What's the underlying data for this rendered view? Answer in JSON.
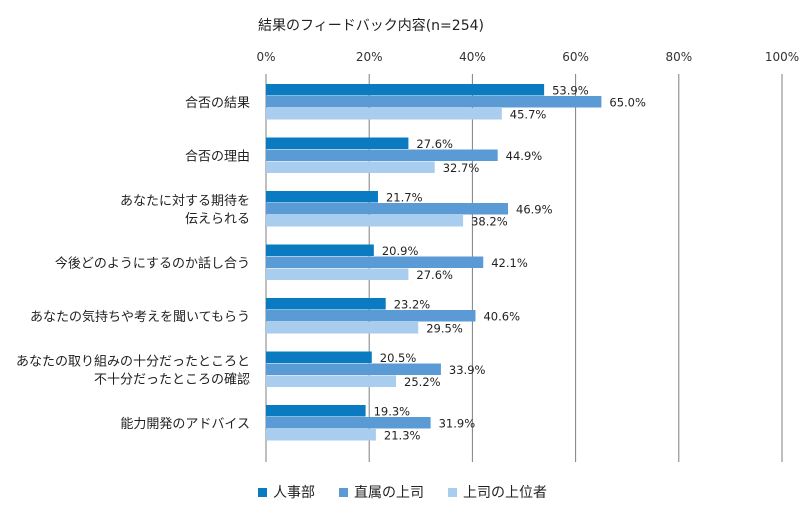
{
  "chart_data": {
    "type": "bar",
    "orientation": "horizontal",
    "title": "結果のフィードバック内容(n=254)",
    "x_axis": {
      "min": 0,
      "max": 100,
      "ticks": [
        "0%",
        "20%",
        "40%",
        "60%",
        "80%",
        "100%"
      ],
      "tick_values": [
        0,
        20,
        40,
        60,
        80,
        100
      ],
      "grid": true
    },
    "categories": [
      [
        "合否の結果"
      ],
      [
        "合否の理由"
      ],
      [
        "あなたに対する期待を",
        "伝えられる"
      ],
      [
        "今後どのようにするのか話し合う"
      ],
      [
        "あなたの気持ちや考えを聞いてもらう"
      ],
      [
        "あなたの取り組みの十分だったところと",
        "不十分だったところの確認"
      ],
      [
        "能力開発のアドバイス"
      ]
    ],
    "series": [
      {
        "name": "人事部",
        "color": "#0a7bc1",
        "values": [
          53.9,
          27.6,
          21.7,
          20.9,
          23.2,
          20.5,
          19.3
        ],
        "labels": [
          "53.9%",
          "27.6%",
          "21.7%",
          "20.9%",
          "23.2%",
          "20.5%",
          "19.3%"
        ]
      },
      {
        "name": "直属の上司",
        "color": "#5b9bd5",
        "values": [
          65.0,
          44.9,
          46.9,
          42.1,
          40.6,
          33.9,
          31.9
        ],
        "labels": [
          "65.0%",
          "44.9%",
          "46.9%",
          "42.1%",
          "40.6%",
          "33.9%",
          "31.9%"
        ]
      },
      {
        "name": "上司の上位者",
        "color": "#a8cdee",
        "values": [
          45.7,
          32.7,
          38.2,
          27.6,
          29.5,
          25.2,
          21.3
        ],
        "labels": [
          "45.7%",
          "32.7%",
          "38.2%",
          "27.6%",
          "29.5%",
          "25.2%",
          "21.3%"
        ]
      }
    ],
    "legend_position": "bottom"
  }
}
